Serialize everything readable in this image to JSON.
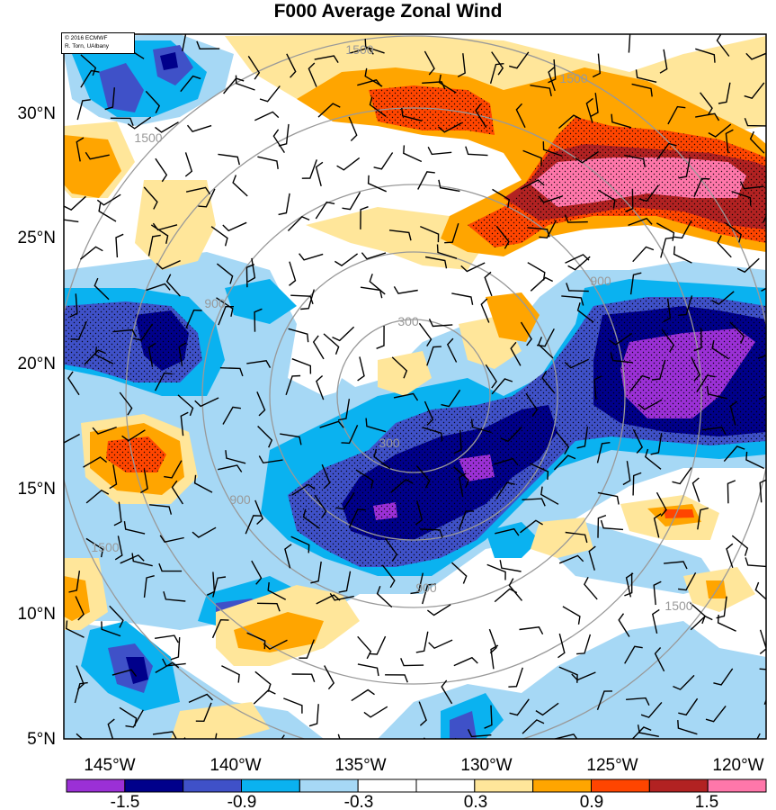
{
  "title": "F000 Average Zonal Wind",
  "credit": [
    "© 2016 ECMWF",
    "R. Torn, UAlbany"
  ],
  "map": {
    "lat_ticks": [
      "30°N",
      "25°N",
      "20°N",
      "15°N",
      "10°N",
      "5°N"
    ],
    "lon_ticks": [
      "145°W",
      "140°W",
      "135°W",
      "130°W",
      "125°W",
      "120°W"
    ],
    "range_rings": {
      "color": "#999999",
      "labels": [
        {
          "text": "300"
        },
        {
          "text": "300"
        },
        {
          "text": "900"
        },
        {
          "text": "900"
        },
        {
          "text": "900"
        },
        {
          "text": "900"
        },
        {
          "text": "1500"
        },
        {
          "text": "1500"
        },
        {
          "text": "1500"
        },
        {
          "text": "1500"
        },
        {
          "text": "1500"
        }
      ]
    }
  },
  "colorbar": {
    "colors": [
      "#9b30d6",
      "#00008b",
      "#3f51c8",
      "#0ab2f0",
      "#a6d8f5",
      "#ffffff",
      "#ffffff",
      "#ffe69a",
      "#ffa500",
      "#ff4500",
      "#b22222",
      "#ff77aa"
    ],
    "labels": [
      "-1.5",
      "-0.9",
      "-0.3",
      "0.3",
      "0.9",
      "1.5"
    ]
  }
}
